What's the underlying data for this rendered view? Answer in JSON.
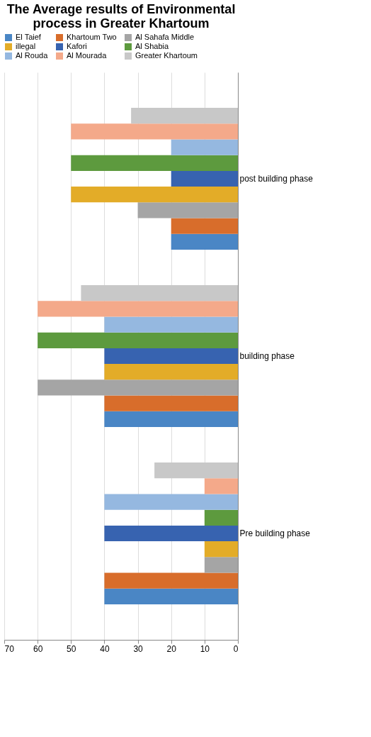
{
  "chart_data": {
    "type": "bar",
    "orientation": "horizontal",
    "title": "The Average results of Environmental process in Greater Khartoum",
    "categories": [
      "post building phase",
      "building phase",
      "Pre  building phase"
    ],
    "series": [
      {
        "name": "El Taief",
        "color": "#4a86c5",
        "values": [
          20,
          40,
          40
        ]
      },
      {
        "name": "Khartoum Two",
        "color": "#d86d2b",
        "values": [
          20,
          40,
          40
        ]
      },
      {
        "name": "Al Sahafa Middle",
        "color": "#a5a5a5",
        "values": [
          30,
          60,
          10
        ]
      },
      {
        "name": "illegal",
        "color": "#e3ac28",
        "values": [
          50,
          40,
          10
        ]
      },
      {
        "name": "Kafori",
        "color": "#3763b0",
        "values": [
          20,
          40,
          40
        ]
      },
      {
        "name": "Al Shabia",
        "color": "#5d9a3e",
        "values": [
          50,
          60,
          10
        ]
      },
      {
        "name": "Al Rouda",
        "color": "#95b8e0",
        "values": [
          20,
          40,
          40
        ]
      },
      {
        "name": "Al Mourada",
        "color": "#f4a98a",
        "values": [
          50,
          60,
          10
        ]
      },
      {
        "name": "Greater Khartoum",
        "color": "#c8c8c8",
        "values": [
          32,
          47,
          25
        ]
      }
    ],
    "xlim": [
      70,
      0
    ],
    "xticks": [
      70,
      60,
      50,
      40,
      30,
      20,
      10,
      0
    ],
    "grid": "x",
    "legend": "top"
  }
}
